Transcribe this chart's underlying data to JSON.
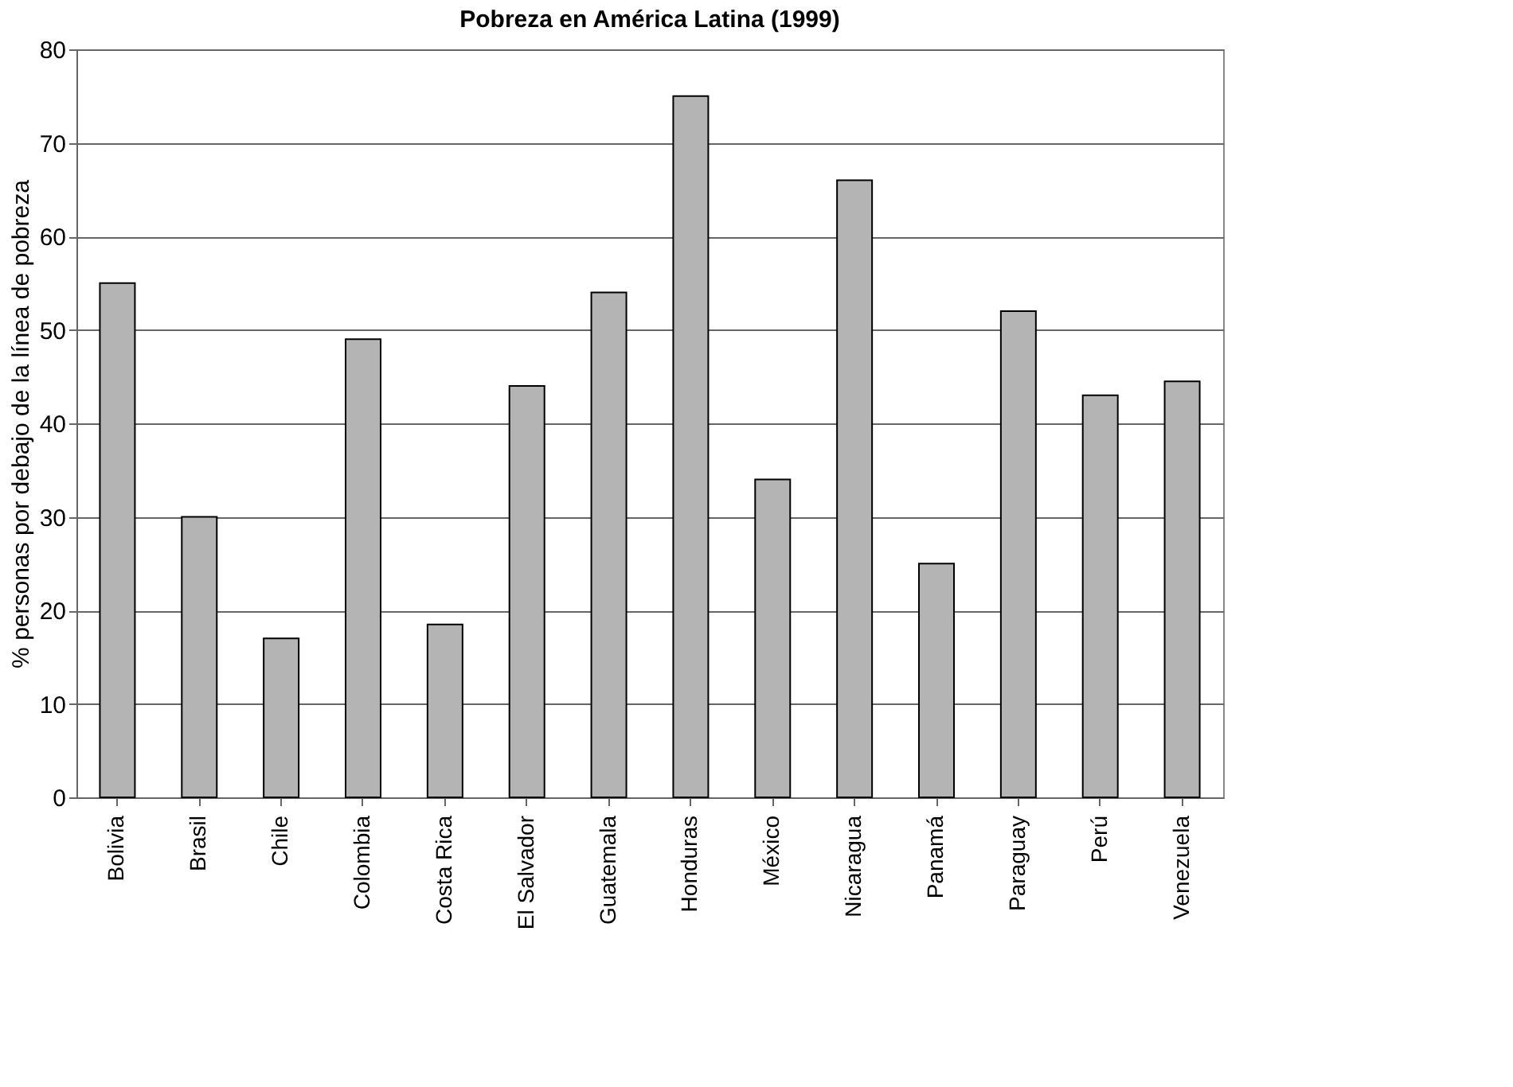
{
  "chart_data": {
    "type": "bar",
    "title": "Pobreza en América Latina (1999)",
    "ylabel": "% personas por debajo de la línea de pobreza",
    "categories": [
      "Bolivia",
      "Brasil",
      "Chile",
      "Colombia",
      "Costa Rica",
      "El Salvador",
      "Guatemala",
      "Honduras",
      "México",
      "Nicaragua",
      "Panamá",
      "Paraguay",
      "Perú",
      "Venezuela"
    ],
    "values": [
      55,
      30,
      17,
      49,
      18.5,
      44,
      54,
      75,
      34,
      66,
      25,
      52,
      43,
      44.5
    ],
    "color": "#b4b4b4",
    "ylim": [
      0,
      80
    ],
    "yticks": [
      0,
      10,
      20,
      30,
      40,
      50,
      60,
      70,
      80
    ],
    "grid": "y"
  }
}
